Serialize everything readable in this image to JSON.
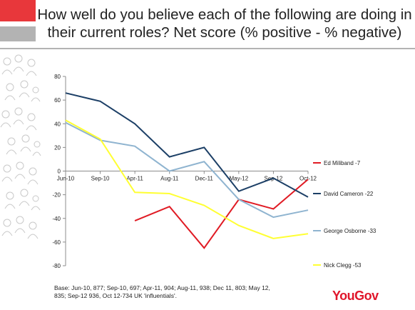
{
  "header": {
    "title": "How well do you believe each of the following are doing in their current roles? Net score (% positive - % negative)",
    "accent_color": "#e8373b",
    "bar_color": "#b3b3b3"
  },
  "chart_data": {
    "type": "line",
    "title": "",
    "xlabel": "",
    "ylabel": "",
    "categories": [
      "Jun-10",
      "Sep-10",
      "Apr-11",
      "Aug-11",
      "Dec-11",
      "May-12",
      "Sep-12",
      "Oct-12"
    ],
    "ylim": [
      -80,
      80
    ],
    "yticks": [
      80,
      60,
      40,
      20,
      0,
      -20,
      -40,
      -60,
      -80
    ],
    "grid": false,
    "legend": "right",
    "series": [
      {
        "name": "Ed Miliband -7",
        "color": "#e01b24",
        "values": [
          null,
          null,
          -42,
          -30,
          -65,
          -24,
          -32,
          -7
        ]
      },
      {
        "name": "David Cameron -22",
        "color": "#1c3f66",
        "values": [
          66,
          59,
          40,
          12,
          20,
          -17,
          -6,
          -22
        ]
      },
      {
        "name": "George Osborne -33",
        "color": "#8fb4d0",
        "values": [
          41,
          26,
          21,
          0,
          8,
          -24,
          -39,
          -33
        ]
      },
      {
        "name": "Nick Clegg -53",
        "color": "#ffff33",
        "values": [
          43,
          27,
          -18,
          -19,
          -29,
          -46,
          -57,
          -53
        ]
      }
    ]
  },
  "footnote": "Base: Jun-10, 877; Sep-10, 697; Apr-11, 904; Aug-11, 938; Dec 11, 803; May 12, 835; Sep-12 936, Oct 12-734 UK 'influentials'.",
  "brand": {
    "name": "YouGov",
    "icon": "yougov-logo",
    "color": "#e0162b"
  }
}
